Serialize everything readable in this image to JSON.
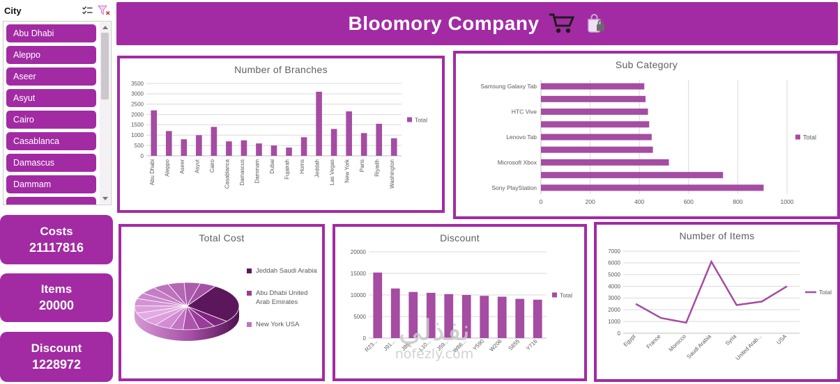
{
  "colors": {
    "primary": "#A22BA3",
    "bar": "#A54CA3",
    "grid": "#D9D9D9",
    "axis_line": "#BFBFBF",
    "axis_text": "#595959",
    "title_text": "#5E5E5E",
    "watermark": "#C9C9C9"
  },
  "header": {
    "title": "Bloomory Company",
    "icons": [
      "cart-icon",
      "bag-icon"
    ]
  },
  "sidebar": {
    "slicer_title": "City",
    "icons": [
      "multi-select-icon",
      "clear-filter-icon"
    ],
    "cities": [
      "Abu Dhabi",
      "Aleppo",
      "Aseer",
      "Asyut",
      "Cairo",
      "Casablanca",
      "Damascus",
      "Dammam"
    ]
  },
  "kpis": [
    {
      "label": "Costs",
      "value": "21117816"
    },
    {
      "label": "Items",
      "value": "20000"
    },
    {
      "label": "Discount",
      "value": "1228972"
    }
  ],
  "watermark": {
    "line1": "نفذلي",
    "line2": "nofezly.com"
  },
  "chart_data": [
    {
      "type": "bar",
      "title": "Number of Branches",
      "categories": [
        "Abu Dhabi",
        "Aleppo",
        "Aseer",
        "Asyut",
        "Cairo",
        "Casablanca",
        "Damascus",
        "Dammam",
        "Dubai",
        "Fujairah",
        "Homs",
        "Jeddah",
        "Las Vegas",
        "New York",
        "Paris",
        "Riyadh",
        "Washington"
      ],
      "values": [
        2200,
        1200,
        800,
        1000,
        1400,
        700,
        750,
        600,
        500,
        400,
        900,
        3100,
        1300,
        2150,
        1100,
        1550,
        850
      ],
      "ylim": [
        0,
        3500
      ],
      "ytick": 500,
      "legend": "Total",
      "grid": true,
      "legend_position": "right"
    },
    {
      "type": "hbar",
      "title": "Sub Category",
      "categories": [
        "Samsung Galaxy Tab",
        "",
        "HTC Vive",
        "",
        "Lenovo Tab",
        "",
        "Microsoft Xbox",
        "",
        "Sony PlayStation"
      ],
      "values": [
        420,
        425,
        435,
        440,
        450,
        455,
        520,
        740,
        905
      ],
      "xlim": [
        0,
        1000
      ],
      "xtick": 200,
      "legend": "Total",
      "grid": true,
      "legend_position": "right"
    },
    {
      "type": "pie",
      "title": "Total Cost",
      "legend_items": [
        "Jeddah Saudi Arabia",
        "Abu Dhabi United Arab Emirates",
        "New York USA"
      ],
      "legend_colors": [
        "#5C175C",
        "#9A3D9A",
        "#C273C2"
      ],
      "values": [
        27,
        5,
        5,
        5,
        4,
        5,
        5,
        5,
        5,
        5,
        4,
        5,
        5,
        5,
        5,
        5
      ],
      "slice_colors": [
        "#5C175C",
        "#7E247E",
        "#9A3D9A",
        "#AD54AD",
        "#C273C2",
        "#D28CD2",
        "#DDA0DD",
        "#E3ABE3",
        "#DC9FDC",
        "#D493D4",
        "#CC88CC",
        "#C47EC4",
        "#BC72BC",
        "#B468B4",
        "#AC5CAC",
        "#A450A4"
      ],
      "start_angle": -57,
      "legend_position": "right"
    },
    {
      "type": "bar",
      "title": "Discount",
      "categories": [
        "R23...",
        "J91...",
        "J88...",
        "L10...",
        "J59...",
        "W66...",
        "Y590",
        "W206",
        "S855",
        "Y716"
      ],
      "values": [
        15200,
        11500,
        10700,
        10500,
        10200,
        10000,
        9800,
        9600,
        9100,
        8900
      ],
      "ylim": [
        0,
        20000
      ],
      "ytick": 5000,
      "legend": "Total",
      "grid": true,
      "legend_position": "right"
    },
    {
      "type": "line",
      "title": "Number of Items",
      "categories": [
        "Egypt",
        "France",
        "Morocco",
        "Saudi Arabia",
        "Syria",
        "United Arab...",
        "USA"
      ],
      "values": [
        2500,
        1300,
        900,
        6100,
        2400,
        2700,
        4000
      ],
      "ylim": [
        0,
        7000
      ],
      "ytick": 1000,
      "legend": "Total",
      "grid": true,
      "legend_position": "right"
    }
  ]
}
